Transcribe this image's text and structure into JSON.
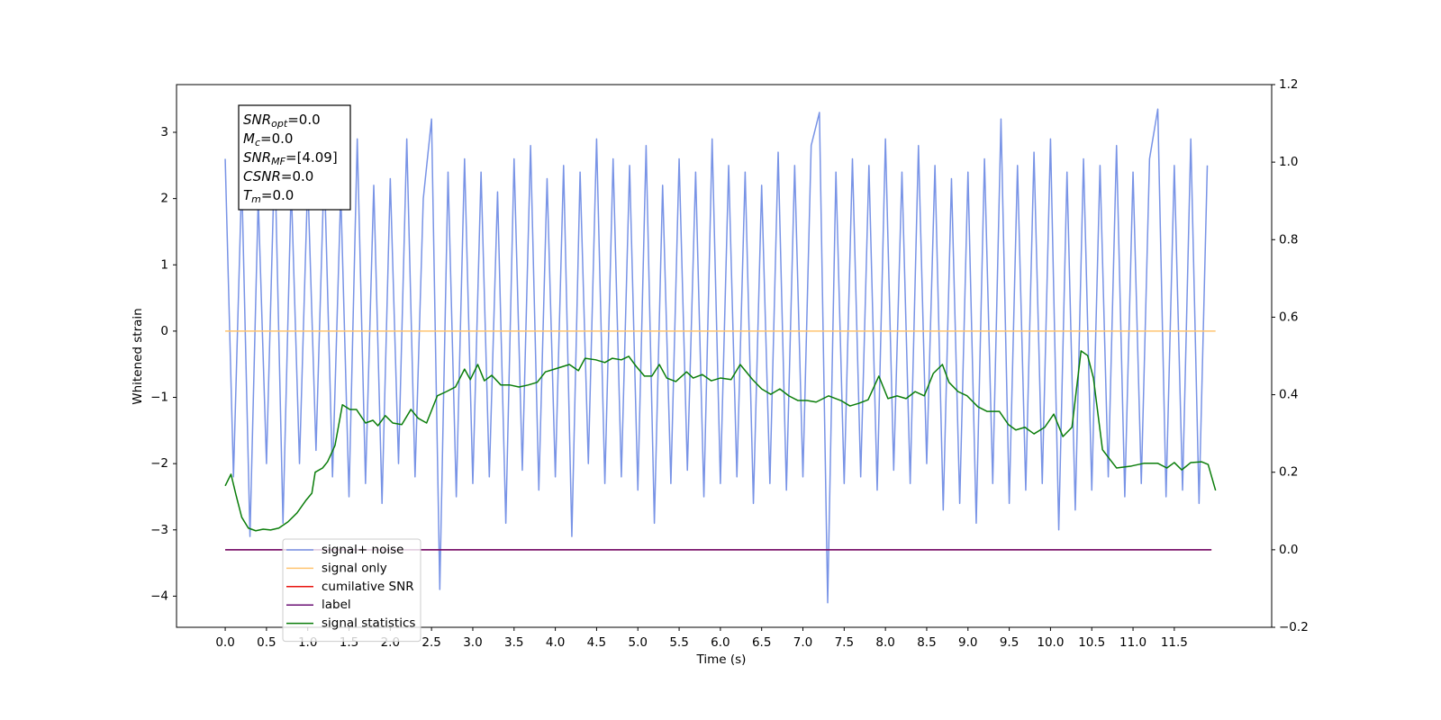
{
  "chart_data": {
    "type": "line",
    "xlabel": "Time (s)",
    "ylabel": "Whitened strain",
    "xlim": [
      -0.59,
      12.68
    ],
    "ylim": [
      -4.47,
      3.72
    ],
    "y2lim": [
      -0.2,
      1.2
    ],
    "xticks": [
      {
        "value": 0,
        "label": "0.0"
      },
      0.5,
      {
        "value": 1,
        "label": "1.0"
      },
      1.5,
      {
        "value": 2,
        "label": "2.0"
      },
      2.5,
      {
        "value": 3,
        "label": "3.0"
      },
      3.5,
      {
        "value": 4,
        "label": "4.0"
      },
      4.5,
      {
        "value": 5,
        "label": "5.0"
      },
      5.5,
      {
        "value": 6,
        "label": "6.0"
      },
      6.5,
      {
        "value": 7,
        "label": "7.0"
      },
      7.5,
      {
        "value": 8,
        "label": "8.0"
      },
      8.5,
      {
        "value": 9,
        "label": "9.0"
      },
      9.5,
      {
        "value": 10,
        "label": "10.0"
      },
      10.5,
      {
        "value": 11,
        "label": "11.0"
      },
      11.5
    ],
    "yticks": [
      {
        "value": -4,
        "label": "−4"
      },
      {
        "value": -3,
        "label": "−3"
      },
      {
        "value": -2,
        "label": "−2"
      },
      {
        "value": -1,
        "label": "−1"
      },
      0,
      1,
      2,
      3
    ],
    "y2ticks": [
      {
        "value": -0.2,
        "label": "−0.2"
      },
      {
        "value": 0,
        "label": "0.0"
      },
      0.2,
      0.4,
      0.6,
      0.8,
      {
        "value": 1,
        "label": "1.0"
      },
      1.2
    ],
    "grid": false,
    "legend": "lower left",
    "annotation": [
      {
        "text": "SNR",
        "sub": "opt",
        "value": "=0.0"
      },
      {
        "text": "M",
        "sub": "c",
        "value": "=0.0"
      },
      {
        "text": "SNR",
        "sub": "MF",
        "value": "=[4.09]"
      },
      {
        "text": "CSNR",
        "value": "=0.0"
      },
      {
        "text": "T",
        "sub": "m",
        "value": "=0.0"
      }
    ],
    "series": [
      {
        "name": "signal+ noise",
        "color": "#7893e6",
        "x": [
          0.0,
          0.1,
          0.2,
          0.3,
          0.4,
          0.5,
          0.6,
          0.7,
          0.8,
          0.9,
          1.0,
          1.1,
          1.2,
          1.3,
          1.4,
          1.5,
          1.6,
          1.7,
          1.8,
          1.9,
          2.0,
          2.1,
          2.2,
          2.3,
          2.4,
          2.5,
          2.6,
          2.7,
          2.8,
          2.9,
          3.0,
          3.1,
          3.2,
          3.3,
          3.4,
          3.5,
          3.6,
          3.7,
          3.8,
          3.9,
          4.0,
          4.1,
          4.2,
          4.3,
          4.4,
          4.5,
          4.6,
          4.7,
          4.8,
          4.9,
          5.0,
          5.1,
          5.2,
          5.3,
          5.4,
          5.5,
          5.6,
          5.7,
          5.8,
          5.9,
          6.0,
          6.1,
          6.2,
          6.3,
          6.4,
          6.5,
          6.6,
          6.7,
          6.8,
          6.9,
          7.0,
          7.1,
          7.2,
          7.3,
          7.4,
          7.5,
          7.6,
          7.7,
          7.8,
          7.9,
          8.0,
          8.1,
          8.2,
          8.3,
          8.4,
          8.5,
          8.6,
          8.7,
          8.8,
          8.9,
          9.0,
          9.1,
          9.2,
          9.3,
          9.4,
          9.5,
          9.6,
          9.7,
          9.8,
          9.9,
          10.0,
          10.1,
          10.2,
          10.3,
          10.4,
          10.5,
          10.6,
          10.7,
          10.8,
          10.9,
          11.0,
          11.1,
          11.2,
          11.3,
          11.4,
          11.5,
          11.6,
          11.7,
          11.8,
          11.9
        ],
        "values": [
          2.6,
          -2.2,
          2.3,
          -3.1,
          2.0,
          -2.0,
          2.7,
          -2.9,
          2.2,
          -2.0,
          2.3,
          -1.8,
          2.5,
          -2.2,
          2.1,
          -2.5,
          2.9,
          -2.3,
          2.2,
          -2.6,
          2.3,
          -2.0,
          2.9,
          -2.2,
          2.0,
          3.2,
          -3.9,
          2.4,
          -2.5,
          2.6,
          -2.3,
          2.4,
          -2.2,
          2.1,
          -2.9,
          2.6,
          -2.1,
          2.8,
          -2.4,
          2.3,
          -2.2,
          2.5,
          -3.1,
          2.4,
          -2.0,
          2.9,
          -2.3,
          2.6,
          -2.2,
          2.5,
          -2.4,
          2.8,
          -2.9,
          2.2,
          -2.3,
          2.6,
          -2.1,
          2.4,
          -2.5,
          2.9,
          -2.3,
          2.5,
          -2.2,
          2.4,
          -2.6,
          2.2,
          -2.3,
          2.7,
          -2.4,
          2.5,
          -2.2,
          2.8,
          3.3,
          -4.1,
          2.4,
          -2.3,
          2.6,
          -2.2,
          2.5,
          -2.4,
          2.9,
          -2.1,
          2.4,
          -2.3,
          2.8,
          -2.0,
          2.5,
          -2.7,
          2.3,
          -2.6,
          2.4,
          -2.9,
          2.6,
          -2.3,
          3.2,
          -2.6,
          2.5,
          -2.4,
          2.7,
          -2.3,
          2.9,
          -3.0,
          2.4,
          -2.7,
          2.6,
          -2.4,
          2.5,
          -2.2,
          2.8,
          -2.5,
          2.4,
          -2.3,
          2.6,
          3.35,
          -2.5,
          2.5,
          -2.4,
          2.9,
          -2.6,
          2.5
        ]
      },
      {
        "name": "signal only",
        "color": "#ffc470",
        "x": [
          0,
          12.0
        ],
        "values": [
          0,
          0
        ]
      },
      {
        "name": "cumilative SNR",
        "color": "#e8120c",
        "axis": "y2",
        "x": [
          0,
          11.95
        ],
        "values": [
          0,
          0
        ]
      },
      {
        "name": "label",
        "color": "#6a0f73",
        "axis": "y2",
        "x": [
          0,
          11.95
        ],
        "values": [
          0,
          0
        ]
      },
      {
        "name": "signal statistics",
        "color": "#0a7d0a",
        "axis": "y2",
        "x": [
          0,
          0.07,
          0.13,
          0.2,
          0.28,
          0.37,
          0.46,
          0.55,
          0.65,
          0.76,
          0.87,
          0.98,
          1.05,
          1.09,
          1.18,
          1.24,
          1.33,
          1.42,
          1.51,
          1.59,
          1.7,
          1.79,
          1.85,
          1.94,
          2.03,
          2.14,
          2.25,
          2.34,
          2.44,
          2.57,
          2.68,
          2.79,
          2.9,
          2.97,
          3.06,
          3.14,
          3.23,
          3.34,
          3.45,
          3.56,
          3.67,
          3.78,
          3.88,
          3.99,
          4.17,
          4.28,
          4.36,
          4.49,
          4.6,
          4.69,
          4.8,
          4.89,
          4.98,
          5.08,
          5.17,
          5.26,
          5.35,
          5.46,
          5.59,
          5.67,
          5.78,
          5.89,
          6.0,
          6.13,
          6.24,
          6.39,
          6.5,
          6.61,
          6.72,
          6.83,
          6.94,
          7.05,
          7.16,
          7.31,
          7.46,
          7.57,
          7.68,
          7.79,
          7.92,
          8.03,
          8.14,
          8.25,
          8.36,
          8.47,
          8.58,
          8.69,
          8.77,
          8.88,
          8.99,
          9.12,
          9.23,
          9.38,
          9.49,
          9.58,
          9.69,
          9.8,
          9.93,
          10.04,
          10.15,
          10.26,
          10.37,
          10.45,
          10.52,
          10.63,
          10.8,
          10.98,
          11.13,
          11.3,
          11.41,
          11.5,
          11.59,
          11.7,
          11.83,
          11.91,
          12.0
        ],
        "values": [
          0.165,
          0.195,
          0.142,
          0.084,
          0.056,
          0.049,
          0.053,
          0.051,
          0.056,
          0.072,
          0.095,
          0.128,
          0.146,
          0.2,
          0.211,
          0.227,
          0.269,
          0.374,
          0.362,
          0.362,
          0.327,
          0.334,
          0.32,
          0.346,
          0.327,
          0.323,
          0.362,
          0.339,
          0.327,
          0.397,
          0.408,
          0.42,
          0.466,
          0.439,
          0.478,
          0.436,
          0.45,
          0.425,
          0.425,
          0.42,
          0.425,
          0.432,
          0.459,
          0.466,
          0.478,
          0.462,
          0.494,
          0.49,
          0.483,
          0.494,
          0.49,
          0.499,
          0.473,
          0.448,
          0.448,
          0.478,
          0.443,
          0.434,
          0.459,
          0.443,
          0.452,
          0.436,
          0.443,
          0.439,
          0.478,
          0.439,
          0.415,
          0.401,
          0.415,
          0.397,
          0.385,
          0.385,
          0.381,
          0.397,
          0.385,
          0.371,
          0.378,
          0.387,
          0.448,
          0.39,
          0.397,
          0.39,
          0.408,
          0.397,
          0.455,
          0.478,
          0.432,
          0.408,
          0.397,
          0.369,
          0.357,
          0.357,
          0.323,
          0.309,
          0.316,
          0.299,
          0.316,
          0.35,
          0.292,
          0.316,
          0.513,
          0.501,
          0.443,
          0.258,
          0.211,
          0.216,
          0.223,
          0.223,
          0.211,
          0.225,
          0.206,
          0.225,
          0.227,
          0.22,
          0.153
        ]
      }
    ]
  }
}
